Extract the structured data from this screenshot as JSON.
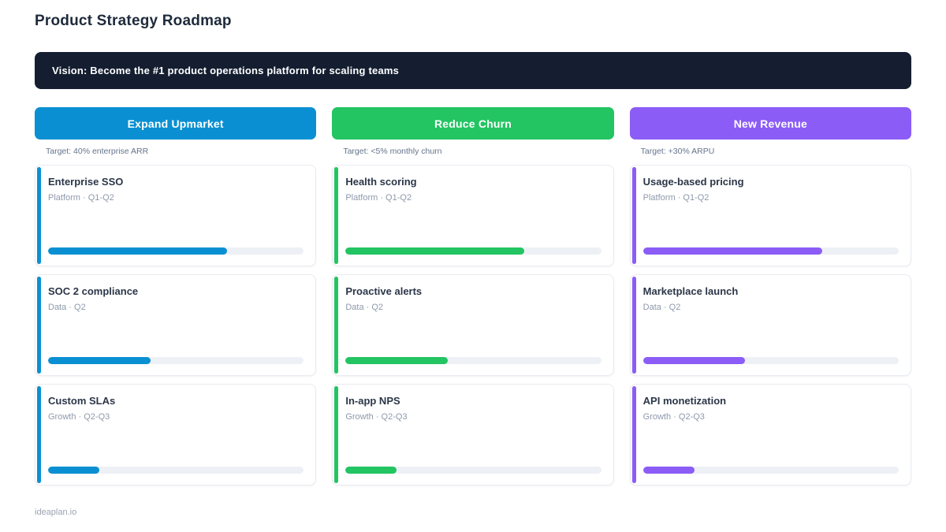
{
  "page": {
    "title": "Product Strategy Roadmap",
    "vision": "Vision: Become the #1 product operations platform for scaling teams",
    "footer": "ideaplan.io"
  },
  "colors": {
    "banner_bg": "#141e30",
    "blue": "#0a90d2",
    "green": "#23c462",
    "purple": "#8b5cf6",
    "track": "#edf0f5"
  },
  "columns": [
    {
      "name": "Expand Upmarket",
      "target": "Target: 40% enterprise ARR",
      "accent": "#0a90d2",
      "cards": [
        {
          "title": "Enterprise SSO",
          "meta": "Platform · Q1-Q2",
          "progress_pct": 70
        },
        {
          "title": "SOC 2 compliance",
          "meta": "Data · Q2",
          "progress_pct": 40
        },
        {
          "title": "Custom SLAs",
          "meta": "Growth · Q2-Q3",
          "progress_pct": 20
        }
      ]
    },
    {
      "name": "Reduce Churn",
      "target": "Target: <5% monthly churn",
      "accent": "#23c462",
      "cards": [
        {
          "title": "Health scoring",
          "meta": "Platform · Q1-Q2",
          "progress_pct": 70
        },
        {
          "title": "Proactive alerts",
          "meta": "Data · Q2",
          "progress_pct": 40
        },
        {
          "title": "In-app NPS",
          "meta": "Growth · Q2-Q3",
          "progress_pct": 20
        }
      ]
    },
    {
      "name": "New Revenue",
      "target": "Target: +30% ARPU",
      "accent": "#8b5cf6",
      "cards": [
        {
          "title": "Usage-based pricing",
          "meta": "Platform · Q1-Q2",
          "progress_pct": 70
        },
        {
          "title": "Marketplace launch",
          "meta": "Data · Q2",
          "progress_pct": 40
        },
        {
          "title": "API monetization",
          "meta": "Growth · Q2-Q3",
          "progress_pct": 20
        }
      ]
    }
  ]
}
